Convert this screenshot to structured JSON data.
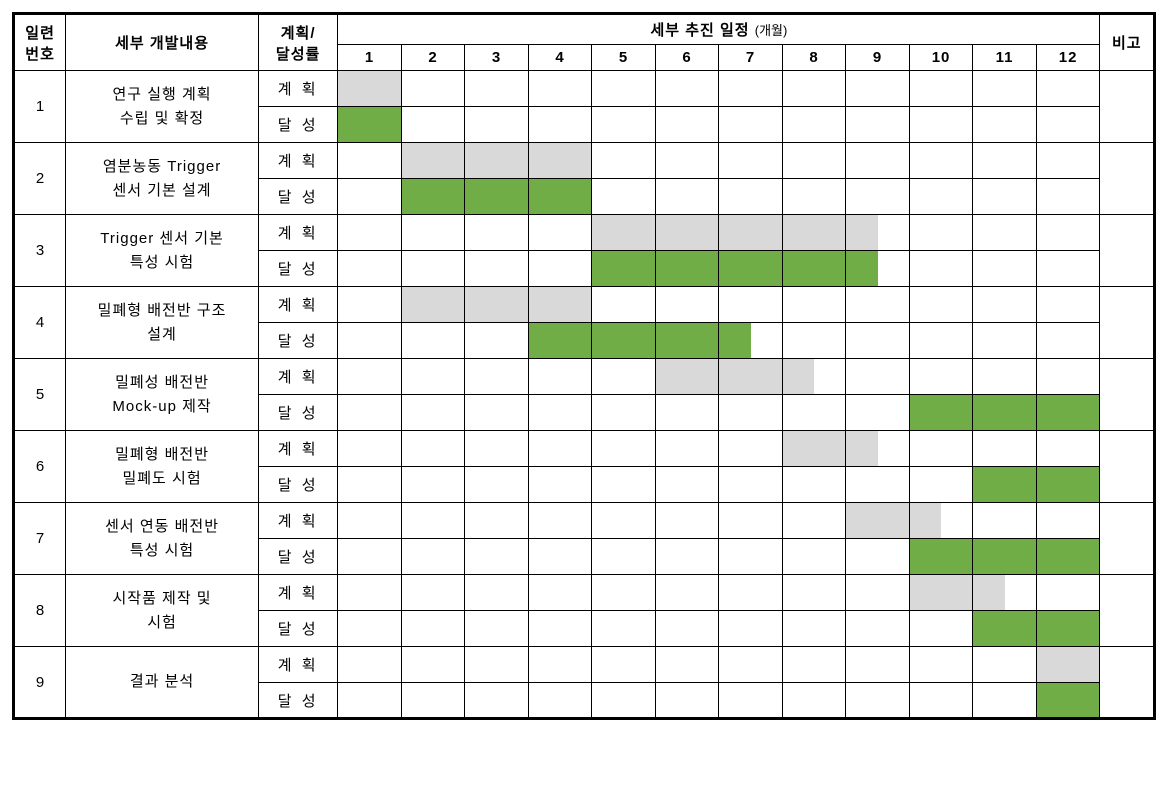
{
  "colors": {
    "plan_bar": "#d9d9d9",
    "achieve_bar": "#70ad47",
    "border": "#000000",
    "background": "#ffffff"
  },
  "typography": {
    "font_family": "Malgun Gothic",
    "header_fontsize_pt": 11,
    "cell_fontsize_pt": 11,
    "unit_fontsize_pt": 10
  },
  "headers": {
    "serial": "일련\n번호",
    "detail_content": "세부 개발내용",
    "plan_rate": "계획/\n달성률",
    "schedule_title": "세부 추진 일정",
    "schedule_unit": "(개월)",
    "note": "비고",
    "months": [
      "1",
      "2",
      "3",
      "4",
      "5",
      "6",
      "7",
      "8",
      "9",
      "10",
      "11",
      "12"
    ]
  },
  "row_labels": {
    "plan": "계 획",
    "achieve": "달 성"
  },
  "tasks": [
    {
      "no": "1",
      "title_line1": "연구 실행 계획",
      "title_line2": "수립 및 확정",
      "plan": [
        1,
        1,
        0,
        0,
        0,
        0,
        0,
        0,
        0,
        0,
        0,
        0,
        0,
        0,
        0,
        0,
        0,
        0,
        0,
        0,
        0,
        0,
        0,
        0
      ],
      "achieve": [
        1,
        1,
        0,
        0,
        0,
        0,
        0,
        0,
        0,
        0,
        0,
        0,
        0,
        0,
        0,
        0,
        0,
        0,
        0,
        0,
        0,
        0,
        0,
        0
      ]
    },
    {
      "no": "2",
      "title_line1": "염분농동 Trigger",
      "title_line2": "센서 기본 설계",
      "plan": [
        0,
        0,
        1,
        1,
        1,
        1,
        1,
        1,
        0,
        0,
        0,
        0,
        0,
        0,
        0,
        0,
        0,
        0,
        0,
        0,
        0,
        0,
        0,
        0
      ],
      "achieve": [
        0,
        0,
        1,
        1,
        1,
        1,
        1,
        1,
        0,
        0,
        0,
        0,
        0,
        0,
        0,
        0,
        0,
        0,
        0,
        0,
        0,
        0,
        0,
        0
      ]
    },
    {
      "no": "3",
      "title_line1": "Trigger 센서 기본",
      "title_line2": "특성 시험",
      "plan": [
        0,
        0,
        0,
        0,
        0,
        0,
        0,
        0,
        1,
        1,
        1,
        1,
        1,
        1,
        1,
        1,
        1,
        0,
        0,
        0,
        0,
        0,
        0,
        0
      ],
      "achieve": [
        0,
        0,
        0,
        0,
        0,
        0,
        0,
        0,
        1,
        1,
        1,
        1,
        1,
        1,
        1,
        1,
        1,
        0,
        0,
        0,
        0,
        0,
        0,
        0
      ]
    },
    {
      "no": "4",
      "title_line1": "밀폐형 배전반 구조",
      "title_line2": "설계",
      "plan": [
        0,
        0,
        1,
        1,
        1,
        1,
        1,
        1,
        0,
        0,
        0,
        0,
        0,
        0,
        0,
        0,
        0,
        0,
        0,
        0,
        0,
        0,
        0,
        0
      ],
      "achieve": [
        0,
        0,
        0,
        0,
        0,
        0,
        1,
        1,
        1,
        1,
        1,
        1,
        1,
        0,
        0,
        0,
        0,
        0,
        0,
        0,
        0,
        0,
        0,
        0
      ]
    },
    {
      "no": "5",
      "title_line1": "밀폐성 배전반",
      "title_line2": "Mock-up 제작",
      "plan": [
        0,
        0,
        0,
        0,
        0,
        0,
        0,
        0,
        0,
        0,
        1,
        1,
        1,
        1,
        1,
        0,
        0,
        0,
        0,
        0,
        0,
        0,
        0,
        0
      ],
      "achieve": [
        0,
        0,
        0,
        0,
        0,
        0,
        0,
        0,
        0,
        0,
        0,
        0,
        0,
        0,
        0,
        0,
        0,
        0,
        1,
        1,
        1,
        1,
        1,
        1
      ]
    },
    {
      "no": "6",
      "title_line1": "밀폐형 배전반",
      "title_line2": "밀폐도 시험",
      "plan": [
        0,
        0,
        0,
        0,
        0,
        0,
        0,
        0,
        0,
        0,
        0,
        0,
        0,
        0,
        1,
        1,
        1,
        0,
        0,
        0,
        0,
        0,
        0,
        0
      ],
      "achieve": [
        0,
        0,
        0,
        0,
        0,
        0,
        0,
        0,
        0,
        0,
        0,
        0,
        0,
        0,
        0,
        0,
        0,
        0,
        0,
        0,
        1,
        1,
        1,
        1
      ]
    },
    {
      "no": "7",
      "title_line1": "센서 연동 배전반",
      "title_line2": "특성 시험",
      "plan": [
        0,
        0,
        0,
        0,
        0,
        0,
        0,
        0,
        0,
        0,
        0,
        0,
        0,
        0,
        0,
        0,
        1,
        1,
        1,
        0,
        0,
        0,
        0,
        0
      ],
      "achieve": [
        0,
        0,
        0,
        0,
        0,
        0,
        0,
        0,
        0,
        0,
        0,
        0,
        0,
        0,
        0,
        0,
        0,
        0,
        1,
        1,
        1,
        1,
        1,
        1
      ]
    },
    {
      "no": "8",
      "title_line1": "시작품 제작 및",
      "title_line2": "시험",
      "plan": [
        0,
        0,
        0,
        0,
        0,
        0,
        0,
        0,
        0,
        0,
        0,
        0,
        0,
        0,
        0,
        0,
        0,
        0,
        1,
        1,
        1,
        0,
        0,
        0
      ],
      "achieve": [
        0,
        0,
        0,
        0,
        0,
        0,
        0,
        0,
        0,
        0,
        0,
        0,
        0,
        0,
        0,
        0,
        0,
        0,
        0,
        0,
        1,
        1,
        1,
        1
      ]
    },
    {
      "no": "9",
      "title_line1": "결과 분석",
      "title_line2": "",
      "plan": [
        0,
        0,
        0,
        0,
        0,
        0,
        0,
        0,
        0,
        0,
        0,
        0,
        0,
        0,
        0,
        0,
        0,
        0,
        0,
        0,
        0,
        0,
        1,
        1
      ],
      "achieve": [
        0,
        0,
        0,
        0,
        0,
        0,
        0,
        0,
        0,
        0,
        0,
        0,
        0,
        0,
        0,
        0,
        0,
        0,
        0,
        0,
        0,
        0,
        1,
        1
      ]
    }
  ]
}
